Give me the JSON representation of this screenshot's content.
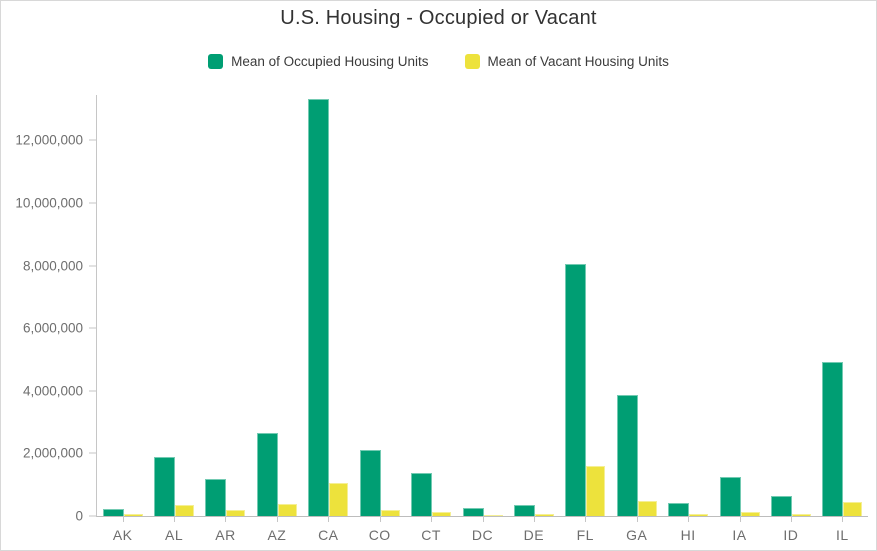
{
  "chart": {
    "title": "U.S. Housing - Occupied or Vacant"
  },
  "chart_data": {
    "type": "bar",
    "title": "U.S. Housing - Occupied or Vacant",
    "xlabel": "",
    "ylabel": "",
    "grid": false,
    "legend_position": "top-center",
    "categories": [
      "AK",
      "AL",
      "AR",
      "AZ",
      "CA",
      "CO",
      "CT",
      "DC",
      "DE",
      "FL",
      "GA",
      "HI",
      "IA",
      "ID",
      "IL"
    ],
    "series": [
      {
        "name": "Mean of Occupied Housing Units",
        "color": "#009e73",
        "values": [
          240000,
          1890000,
          1170000,
          2660000,
          13320000,
          2120000,
          1380000,
          270000,
          340000,
          8050000,
          3860000,
          430000,
          1250000,
          640000,
          4920000
        ]
      },
      {
        "name": "Mean of Vacant Housing Units",
        "color": "#ede23c",
        "values": [
          60000,
          350000,
          190000,
          370000,
          1070000,
          200000,
          130000,
          30000,
          50000,
          1610000,
          480000,
          50000,
          120000,
          60000,
          450000
        ]
      }
    ],
    "ylim": [
      0,
      13450000
    ],
    "yticks": [
      0,
      2000000,
      4000000,
      6000000,
      8000000,
      10000000,
      12000000
    ],
    "ytick_labels": [
      "0",
      "2,000,000",
      "4,000,000",
      "6,000,000",
      "8,000,000",
      "10,000,000",
      "12,000,000"
    ],
    "axis_color": "#c6c6c6",
    "tick_label_color": "#6e6e6e",
    "title_color": "#323232"
  }
}
